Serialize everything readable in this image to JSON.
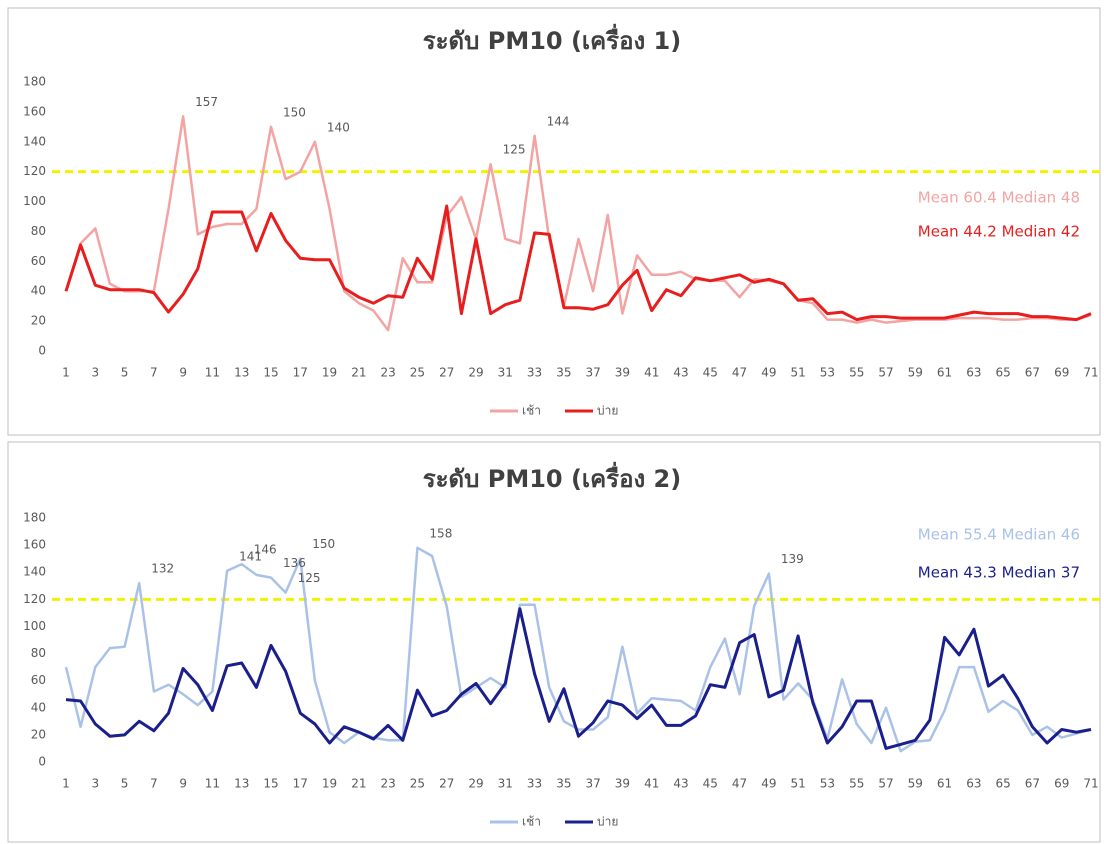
{
  "chart_data": [
    {
      "type": "line",
      "title": "ระดับ PM10 (เครื่อง 1)",
      "categories": [
        1,
        null,
        3,
        null,
        5,
        null,
        7,
        null,
        9,
        null,
        11,
        null,
        13,
        null,
        15,
        null,
        17,
        null,
        19,
        null,
        21,
        null,
        23,
        null,
        25,
        null,
        27,
        null,
        29,
        null,
        31,
        null,
        33,
        null,
        35,
        null,
        37,
        null,
        39,
        null,
        41,
        null,
        43,
        null,
        45,
        null,
        47,
        null,
        49,
        null,
        51,
        null,
        53,
        null,
        55,
        null,
        57,
        null,
        59,
        null,
        61,
        null,
        63,
        null,
        65,
        null,
        67,
        null,
        69,
        null,
        71
      ],
      "series": [
        {
          "name": "เช้า",
          "color": "#f4a3a3",
          "stats": "Mean 60.4  Median 48",
          "values": [
            40,
            72,
            82,
            45,
            40,
            40,
            40,
            95,
            157,
            78,
            83,
            85,
            85,
            95,
            150,
            115,
            120,
            140,
            95,
            40,
            32,
            27,
            14,
            62,
            46,
            46,
            90,
            103,
            75,
            125,
            75,
            72,
            144,
            75,
            30,
            75,
            40,
            91,
            25,
            64,
            51,
            51,
            53,
            48,
            47,
            47,
            36,
            48,
            47,
            45,
            34,
            32,
            21,
            21,
            19,
            21,
            19,
            20,
            21,
            21,
            21,
            22,
            22,
            22,
            21,
            21,
            22,
            22,
            21,
            21,
            24
          ],
          "value_labels": [
            null,
            null,
            null,
            null,
            null,
            null,
            null,
            null,
            "157",
            null,
            null,
            null,
            null,
            null,
            "150",
            null,
            null,
            "140",
            null,
            null,
            null,
            null,
            null,
            null,
            null,
            null,
            null,
            null,
            null,
            "125",
            null,
            null,
            "144",
            null,
            null,
            null,
            null,
            null,
            null,
            null,
            null,
            null,
            null,
            null,
            null,
            null,
            null,
            null,
            null,
            null,
            null,
            null,
            null,
            null,
            null,
            null,
            null,
            null,
            null,
            null,
            null,
            null,
            null,
            null,
            null,
            null,
            null,
            null,
            null,
            null,
            null
          ]
        },
        {
          "name": "บ่าย",
          "color": "#e81e1e",
          "stats": "Mean 44.2  Median 42",
          "values": [
            40,
            71,
            44,
            41,
            41,
            41,
            39,
            26,
            38,
            55,
            93,
            93,
            93,
            67,
            92,
            74,
            62,
            61,
            61,
            42,
            36,
            32,
            37,
            36,
            62,
            48,
            97,
            25,
            75,
            25,
            31,
            34,
            79,
            78,
            29,
            29,
            28,
            31,
            44,
            54,
            27,
            41,
            37,
            49,
            47,
            49,
            51,
            46,
            48,
            45,
            34,
            35,
            25,
            26,
            21,
            23,
            23,
            22,
            22,
            22,
            22,
            24,
            26,
            25,
            25,
            25,
            23,
            23,
            22,
            21,
            25
          ]
        }
      ],
      "ylim": [
        0,
        180
      ],
      "yticks": [
        0,
        20,
        40,
        60,
        80,
        100,
        120,
        140,
        160,
        180
      ],
      "threshold": 120,
      "threshold_color": "#f2f200",
      "legend": "bottom"
    },
    {
      "type": "line",
      "title": "ระดับ PM10 (เครื่อง 2)",
      "categories": [
        1,
        null,
        3,
        null,
        5,
        null,
        7,
        null,
        9,
        null,
        11,
        null,
        13,
        null,
        15,
        null,
        17,
        null,
        19,
        null,
        21,
        null,
        23,
        null,
        25,
        null,
        27,
        null,
        29,
        null,
        31,
        null,
        33,
        null,
        35,
        null,
        37,
        null,
        39,
        null,
        41,
        null,
        43,
        null,
        45,
        null,
        47,
        null,
        49,
        null,
        51,
        null,
        53,
        null,
        55,
        null,
        57,
        null,
        59,
        null,
        61,
        null,
        63,
        null,
        65,
        null,
        67,
        null,
        69,
        null,
        71
      ],
      "series": [
        {
          "name": "เช้า",
          "color": "#aac2e8",
          "stats": "Mean 55.4  Median 46",
          "values": [
            70,
            26,
            70,
            84,
            85,
            132,
            52,
            57,
            50,
            42,
            52,
            141,
            146,
            138,
            136,
            125,
            150,
            60,
            22,
            14,
            22,
            18,
            16,
            16,
            158,
            152,
            115,
            48,
            55,
            62,
            55,
            116,
            116,
            55,
            30,
            24,
            24,
            33,
            85,
            36,
            47,
            46,
            45,
            38,
            70,
            91,
            50,
            115,
            139,
            46,
            58,
            46,
            17,
            61,
            28,
            14,
            40,
            8,
            15,
            16,
            38,
            70,
            70,
            37,
            45,
            38,
            20,
            26,
            18,
            21,
            24
          ],
          "value_labels": [
            null,
            null,
            null,
            null,
            null,
            "132",
            null,
            null,
            null,
            null,
            null,
            "141",
            "146",
            null,
            "136",
            "125",
            "150",
            null,
            null,
            null,
            null,
            null,
            null,
            null,
            "158",
            null,
            null,
            null,
            null,
            null,
            null,
            null,
            null,
            null,
            null,
            null,
            null,
            null,
            null,
            null,
            null,
            null,
            null,
            null,
            null,
            null,
            null,
            null,
            "139",
            null,
            null,
            null,
            null,
            null,
            null,
            null,
            null,
            null,
            null,
            null,
            null,
            null,
            null,
            null,
            null,
            null,
            null,
            null,
            null,
            null,
            null
          ]
        },
        {
          "name": "บ่าย",
          "color": "#1a1f8c",
          "stats": "Mean 43.3  Median 37",
          "values": [
            46,
            45,
            28,
            19,
            20,
            30,
            23,
            36,
            69,
            57,
            38,
            71,
            73,
            55,
            86,
            67,
            36,
            28,
            14,
            26,
            22,
            17,
            27,
            16,
            53,
            34,
            38,
            50,
            58,
            43,
            58,
            113,
            65,
            30,
            54,
            19,
            29,
            45,
            42,
            32,
            42,
            27,
            27,
            34,
            57,
            55,
            88,
            94,
            48,
            53,
            93,
            44,
            14,
            26,
            45,
            45,
            10,
            13,
            16,
            31,
            92,
            79,
            98,
            56,
            64,
            47,
            26,
            14,
            24,
            22,
            24
          ]
        }
      ],
      "ylim": [
        0,
        180
      ],
      "yticks": [
        0,
        20,
        40,
        60,
        80,
        100,
        120,
        140,
        160,
        180
      ],
      "threshold": 120,
      "threshold_color": "#f2f200",
      "legend": "bottom"
    }
  ]
}
